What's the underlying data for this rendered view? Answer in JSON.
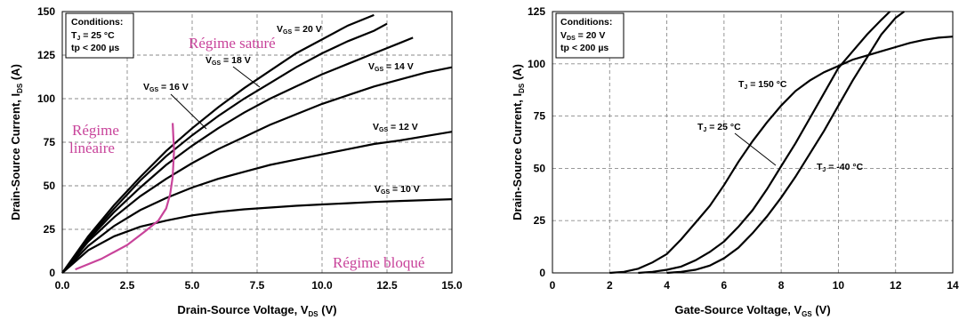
{
  "chart_data": [
    {
      "type": "line",
      "xlabel": "Drain-Source Voltage, V",
      "xlabel_sub": "DS",
      "xlabel_suffix": " (V)",
      "ylabel": "Drain-Source Current, I",
      "ylabel_sub": "DS",
      "ylabel_suffix": " (A)",
      "xlim": [
        0,
        15
      ],
      "ylim": [
        0,
        150
      ],
      "x_ticks": [
        "0.0",
        "2.5",
        "5.0",
        "7.5",
        "10.0",
        "12.5",
        "15.0"
      ],
      "y_ticks": [
        "0",
        "25",
        "50",
        "75",
        "100",
        "125",
        "150"
      ],
      "grid": true,
      "conditions": {
        "title": "Conditions:",
        "line1_pre": "T",
        "line1_sub": "J",
        "line1_post": " = 25 °C",
        "line2": "tp < 200 µs"
      },
      "series": [
        {
          "name": "V",
          "sub": "GS",
          "post": " = 20 V",
          "x": [
            0,
            1,
            2,
            3,
            4,
            5,
            6,
            7,
            8,
            9,
            10,
            11,
            12
          ],
          "y": [
            0,
            21,
            39,
            55,
            70,
            83,
            95,
            106,
            116,
            126,
            134,
            142,
            148
          ]
        },
        {
          "name": "V",
          "sub": "GS",
          "post": " = 18 V",
          "x": [
            0,
            1,
            2,
            3,
            4,
            5,
            6,
            7,
            8,
            9,
            10,
            11,
            12,
            12.5
          ],
          "y": [
            0,
            20,
            37,
            53,
            67,
            79,
            90,
            100,
            109,
            118,
            126,
            133,
            139,
            143
          ]
        },
        {
          "name": "V",
          "sub": "GS",
          "post": " = 16 V",
          "x": [
            0,
            1,
            2,
            3,
            4,
            5,
            6,
            7,
            8,
            9,
            10,
            11,
            12,
            13,
            13.5
          ],
          "y": [
            0,
            19,
            35,
            49,
            62,
            73,
            83,
            92,
            100,
            107,
            114,
            120,
            126,
            132,
            135
          ]
        },
        {
          "name": "V",
          "sub": "GS",
          "post": " = 14 V",
          "x": [
            0,
            1,
            2,
            3,
            4,
            5,
            6,
            7,
            8,
            9,
            10,
            11,
            12,
            13,
            14,
            15
          ],
          "y": [
            0,
            18,
            32,
            44,
            54,
            63,
            71,
            78,
            85,
            91,
            97,
            102,
            107,
            111,
            115,
            118
          ]
        },
        {
          "name": "V",
          "sub": "GS",
          "post": " = 12 V",
          "x": [
            0,
            1,
            2,
            3,
            4,
            5,
            6,
            7,
            8,
            9,
            10,
            11,
            12,
            13,
            14,
            15
          ],
          "y": [
            0,
            15.5,
            27,
            36,
            43,
            49,
            54,
            58,
            62,
            65,
            68,
            71,
            74,
            76,
            78.5,
            81
          ]
        },
        {
          "name": "V",
          "sub": "GS",
          "post": " = 10 V",
          "x": [
            0,
            1,
            2,
            3,
            4,
            5,
            6,
            7,
            8,
            9,
            10,
            11,
            12,
            13,
            14,
            15
          ],
          "y": [
            0,
            13,
            21,
            26.5,
            30,
            33,
            35,
            36.5,
            37.5,
            38.5,
            39.3,
            40,
            40.7,
            41.3,
            41.8,
            42.3
          ]
        }
      ],
      "boundary_curve": {
        "x": [
          0.5,
          1.5,
          2.5,
          3.2,
          3.7,
          4.0,
          4.15,
          4.25,
          4.3,
          4.25
        ],
        "y": [
          2,
          8,
          16,
          24,
          30,
          37,
          45,
          55,
          70,
          86
        ]
      },
      "regions": [
        "Régime saturé",
        "Régime",
        "linéaire",
        "Régime bloqué"
      ]
    },
    {
      "type": "line",
      "xlabel": "Gate-Source Voltage, V",
      "xlabel_sub": "GS",
      "xlabel_suffix": " (V)",
      "ylabel": "Drain-Source Current, I",
      "ylabel_sub": "DS",
      "ylabel_suffix": " (A)",
      "xlim": [
        0,
        14
      ],
      "ylim": [
        0,
        125
      ],
      "x_ticks": [
        "0",
        "2",
        "4",
        "6",
        "8",
        "10",
        "12",
        "14"
      ],
      "y_ticks": [
        "0",
        "25",
        "50",
        "75",
        "100",
        "125"
      ],
      "grid": true,
      "conditions": {
        "title": "Conditions:",
        "line1_pre": "V",
        "line1_sub": "DS",
        "line1_post": " = 20 V",
        "line2": "tp < 200 µs"
      },
      "series": [
        {
          "name": "T",
          "sub": "J",
          "post": " = 150 °C",
          "x": [
            2,
            2.5,
            3,
            3.5,
            4,
            4.5,
            5,
            5.5,
            6,
            6.5,
            7,
            7.5,
            8,
            8.5,
            9,
            9.5,
            10,
            10.5,
            11,
            11.5,
            12,
            12.5,
            13,
            13.5,
            14
          ],
          "y": [
            0,
            0.5,
            2,
            5,
            9,
            16,
            24,
            32,
            42,
            53,
            63,
            72,
            80,
            87,
            92,
            96,
            99,
            102,
            104,
            106,
            108,
            110,
            111.5,
            112.5,
            113
          ]
        },
        {
          "name": "T",
          "sub": "J",
          "post": " = 25 °C",
          "x": [
            3,
            3.5,
            4,
            4.5,
            5,
            5.5,
            6,
            6.5,
            7,
            7.5,
            8,
            8.5,
            9,
            9.5,
            10,
            10.5,
            11,
            11.5,
            11.8
          ],
          "y": [
            0,
            0.5,
            1.5,
            3,
            6,
            10,
            15,
            22,
            30,
            40,
            51,
            62,
            74,
            86,
            98,
            106,
            114,
            121,
            125
          ]
        },
        {
          "name": "T",
          "sub": "J",
          "post": " = -40 °C",
          "x": [
            4,
            4.5,
            5,
            5.5,
            6,
            6.5,
            7,
            7.5,
            8,
            8.5,
            9,
            9.5,
            10,
            10.5,
            11,
            11.5,
            12,
            12.3
          ],
          "y": [
            0,
            0.5,
            1.5,
            3.5,
            7,
            12,
            19,
            27,
            36,
            46,
            57,
            68,
            80,
            92,
            103,
            114,
            122,
            125
          ]
        }
      ]
    }
  ]
}
